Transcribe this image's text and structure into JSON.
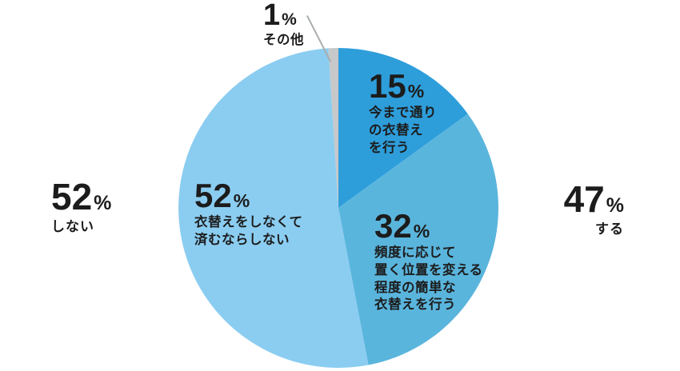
{
  "chart_data": {
    "type": "pie",
    "title": "",
    "direction": "clockwise",
    "start_angle_deg": 0,
    "slices": [
      {
        "value": 15,
        "unit": "%",
        "label": "今まで通り\nの衣替え\nを行う",
        "color": "#2E9EDB"
      },
      {
        "value": 32,
        "unit": "%",
        "label": "頻度に応じて\n置く位置を変える\n程度の簡単な\n衣替えを行う",
        "color": "#5AB5DD"
      },
      {
        "value": 52,
        "unit": "%",
        "label": "衣替えをしなくて\n済むならしない",
        "color": "#8BCDF1"
      },
      {
        "value": 1,
        "unit": "%",
        "label": "その他",
        "color": "#C6C8CA"
      }
    ],
    "annotations": [
      {
        "value": 52,
        "unit": "%",
        "label": "しない",
        "side": "left"
      },
      {
        "value": 47,
        "unit": "%",
        "label": "する",
        "side": "right"
      }
    ],
    "legend_position": "none",
    "background_color": "#ffffff",
    "text_color": "#1c1c1c",
    "callout_line_color": "#a9acae"
  }
}
